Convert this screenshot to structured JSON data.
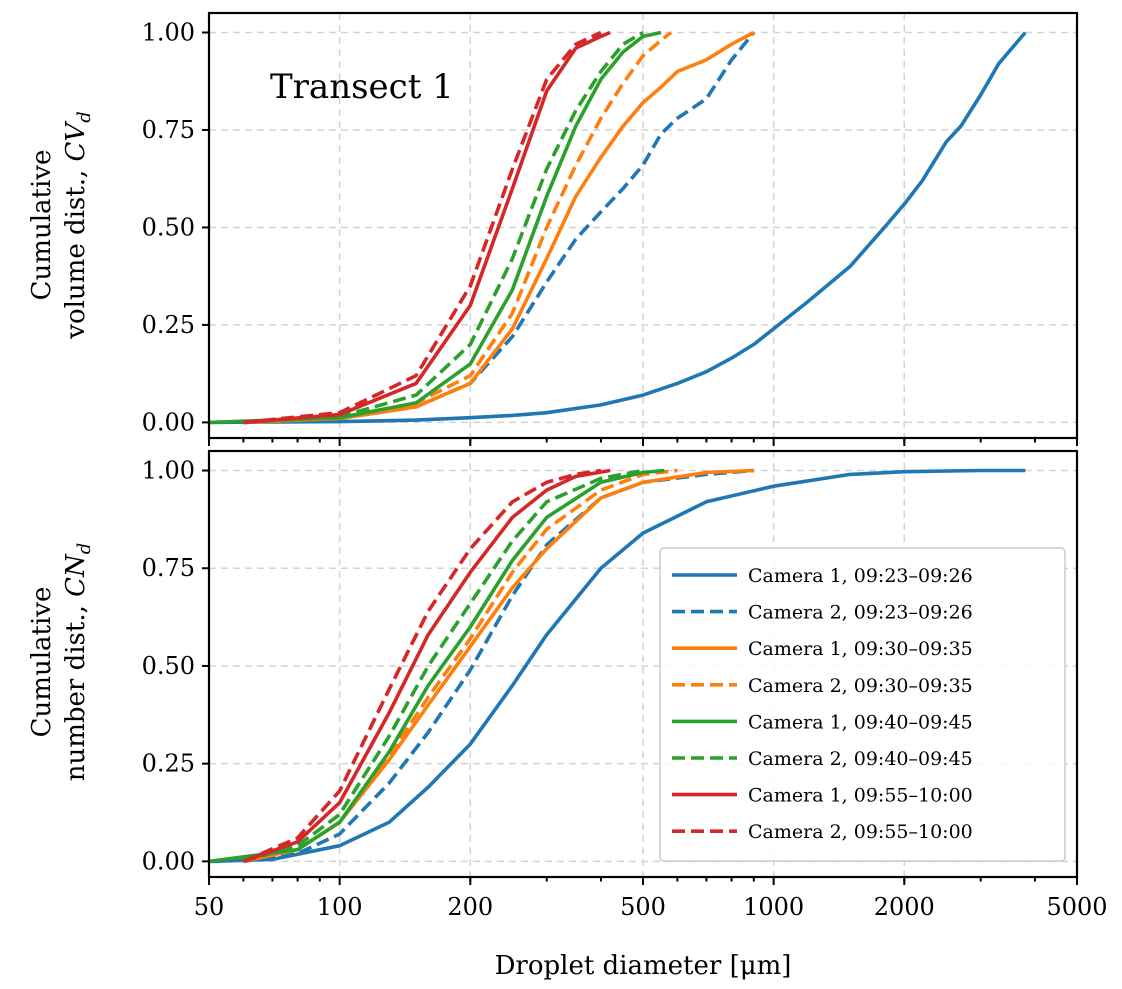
{
  "chart_data": {
    "type": "line",
    "xlabel": "Droplet diameter [μm]",
    "xscale": "log",
    "xlim": [
      50,
      5000
    ],
    "xticks": [
      50,
      100,
      200,
      500,
      1000,
      2000,
      5000
    ],
    "xtick_labels": [
      "50",
      "100",
      "200",
      "500",
      "1000",
      "2000",
      "5000"
    ],
    "grid": true,
    "panels": [
      {
        "id": "volume",
        "annotation": "Transect 1",
        "ylabel_line1": "Cumulative",
        "ylabel_line2_text": "volume dist., ",
        "ylabel_symbol": "CV",
        "ylabel_sub": "d",
        "ylim": [
          -0.04,
          1.05
        ],
        "yticks": [
          0,
          0.25,
          0.5,
          0.75,
          1
        ],
        "ytick_labels": [
          "0.00",
          "0.25",
          "0.50",
          "0.75",
          "1.00"
        ],
        "series": [
          {
            "name": "Camera 1, 09:23–09:26",
            "color": "#1f77b4",
            "dash": false,
            "x": [
              50,
              100,
              150,
              200,
              250,
              300,
              400,
              500,
              600,
              700,
              800,
              900,
              1000,
              1200,
              1500,
              1800,
              2000,
              2200,
              2500,
              2700,
              3000,
              3300,
              3800
            ],
            "y": [
              0,
              0.002,
              0.006,
              0.012,
              0.018,
              0.025,
              0.045,
              0.07,
              0.1,
              0.13,
              0.165,
              0.2,
              0.24,
              0.31,
              0.4,
              0.5,
              0.56,
              0.62,
              0.72,
              0.76,
              0.84,
              0.92,
              1.0
            ]
          },
          {
            "name": "Camera 2, 09:23–09:26",
            "color": "#1f77b4",
            "dash": true,
            "x": [
              60,
              100,
              150,
              200,
              250,
              300,
              350,
              400,
              450,
              500,
              550,
              600,
              700,
              800,
              900
            ],
            "y": [
              0,
              0.01,
              0.04,
              0.1,
              0.22,
              0.36,
              0.47,
              0.54,
              0.6,
              0.66,
              0.74,
              0.78,
              0.83,
              0.93,
              1.0
            ]
          },
          {
            "name": "Camera 1, 09:30–09:35",
            "color": "#ff7f0e",
            "dash": false,
            "x": [
              60,
              100,
              150,
              200,
              250,
              300,
              350,
              400,
              450,
              500,
              550,
              600,
              700,
              800,
              900
            ],
            "y": [
              0,
              0.01,
              0.04,
              0.1,
              0.24,
              0.42,
              0.58,
              0.68,
              0.76,
              0.82,
              0.86,
              0.9,
              0.93,
              0.97,
              1.0
            ]
          },
          {
            "name": "Camera 2, 09:30–09:35",
            "color": "#ff7f0e",
            "dash": true,
            "x": [
              60,
              100,
              150,
              200,
              250,
              300,
              350,
              400,
              450,
              500,
              550,
              580
            ],
            "y": [
              0,
              0.012,
              0.05,
              0.12,
              0.28,
              0.5,
              0.66,
              0.78,
              0.87,
              0.94,
              0.98,
              1.0
            ]
          },
          {
            "name": "Camera 1, 09:40–09:45",
            "color": "#2ca02c",
            "dash": false,
            "x": [
              50,
              100,
              150,
              200,
              250,
              300,
              350,
              400,
              450,
              500,
              550
            ],
            "y": [
              0,
              0.012,
              0.05,
              0.15,
              0.34,
              0.58,
              0.76,
              0.88,
              0.95,
              0.99,
              1.0
            ]
          },
          {
            "name": "Camera 2, 09:40–09:45",
            "color": "#2ca02c",
            "dash": true,
            "x": [
              60,
              100,
              150,
              200,
              250,
              300,
              350,
              400,
              450,
              500
            ],
            "y": [
              0,
              0.015,
              0.07,
              0.2,
              0.42,
              0.65,
              0.8,
              0.9,
              0.97,
              1.0
            ]
          },
          {
            "name": "Camera 1, 09:55–10:00",
            "color": "#d62728",
            "dash": false,
            "x": [
              60,
              100,
              150,
              200,
              250,
              300,
              350,
              400,
              420
            ],
            "y": [
              0,
              0.02,
              0.1,
              0.3,
              0.6,
              0.85,
              0.96,
              0.99,
              1.0
            ]
          },
          {
            "name": "Camera 2, 09:55–10:00",
            "color": "#d62728",
            "dash": true,
            "x": [
              60,
              100,
              150,
              200,
              250,
              300,
              350,
              400
            ],
            "y": [
              0,
              0.025,
              0.12,
              0.35,
              0.65,
              0.88,
              0.97,
              1.0
            ]
          }
        ]
      },
      {
        "id": "number",
        "ylabel_line1": "Cumulative",
        "ylabel_line2_text": "number dist., ",
        "ylabel_symbol": "CN",
        "ylabel_sub": "d",
        "ylim": [
          -0.04,
          1.05
        ],
        "yticks": [
          0,
          0.25,
          0.5,
          0.75,
          1
        ],
        "ytick_labels": [
          "0.00",
          "0.25",
          "0.50",
          "0.75",
          "1.00"
        ],
        "legend_position": "lower right",
        "series": [
          {
            "name": "Camera 1, 09:23–09:26",
            "color": "#1f77b4",
            "dash": false,
            "x": [
              50,
              70,
              100,
              130,
              160,
              200,
              250,
              300,
              400,
              500,
              700,
              1000,
              1500,
              2000,
              3000,
              3800
            ],
            "y": [
              0,
              0.005,
              0.04,
              0.1,
              0.19,
              0.3,
              0.45,
              0.58,
              0.75,
              0.84,
              0.92,
              0.96,
              0.99,
              0.997,
              1.0,
              1.0
            ]
          },
          {
            "name": "Camera 2, 09:23–09:26",
            "color": "#1f77b4",
            "dash": true,
            "x": [
              60,
              80,
              100,
              130,
              160,
              200,
              250,
              300,
              400,
              500,
              700,
              900
            ],
            "y": [
              0,
              0.02,
              0.07,
              0.2,
              0.33,
              0.49,
              0.68,
              0.81,
              0.93,
              0.97,
              0.99,
              1.0
            ]
          },
          {
            "name": "Camera 1, 09:30–09:35",
            "color": "#ff7f0e",
            "dash": false,
            "x": [
              60,
              80,
              100,
              130,
              160,
              200,
              250,
              300,
              400,
              500,
              700,
              900
            ],
            "y": [
              0,
              0.03,
              0.1,
              0.26,
              0.4,
              0.55,
              0.7,
              0.8,
              0.93,
              0.97,
              0.995,
              1.0
            ]
          },
          {
            "name": "Camera 2, 09:30–09:35",
            "color": "#ff7f0e",
            "dash": true,
            "x": [
              60,
              80,
              100,
              130,
              160,
              200,
              250,
              300,
              400,
              500,
              600
            ],
            "y": [
              0,
              0.03,
              0.1,
              0.27,
              0.42,
              0.57,
              0.74,
              0.85,
              0.95,
              0.99,
              1.0
            ]
          },
          {
            "name": "Camera 1, 09:40–09:45",
            "color": "#2ca02c",
            "dash": false,
            "x": [
              50,
              80,
              100,
              130,
              160,
              200,
              250,
              300,
              400,
              500,
              560
            ],
            "y": [
              0,
              0.03,
              0.1,
              0.28,
              0.45,
              0.6,
              0.77,
              0.88,
              0.97,
              0.995,
              1.0
            ]
          },
          {
            "name": "Camera 2, 09:40–09:45",
            "color": "#2ca02c",
            "dash": true,
            "x": [
              60,
              80,
              100,
              130,
              160,
              200,
              250,
              300,
              400,
              500
            ],
            "y": [
              0,
              0.04,
              0.12,
              0.32,
              0.5,
              0.66,
              0.82,
              0.92,
              0.98,
              1.0
            ]
          },
          {
            "name": "Camera 1, 09:55–10:00",
            "color": "#d62728",
            "dash": false,
            "x": [
              60,
              80,
              100,
              130,
              160,
              200,
              250,
              300,
              350,
              420
            ],
            "y": [
              0,
              0.05,
              0.15,
              0.38,
              0.58,
              0.74,
              0.88,
              0.95,
              0.985,
              1.0
            ]
          },
          {
            "name": "Camera 2, 09:55–10:00",
            "color": "#d62728",
            "dash": true,
            "x": [
              60,
              80,
              100,
              130,
              160,
              200,
              250,
              300,
              350,
              400
            ],
            "y": [
              0,
              0.06,
              0.18,
              0.44,
              0.64,
              0.8,
              0.92,
              0.97,
              0.99,
              1.0
            ]
          }
        ]
      }
    ]
  }
}
